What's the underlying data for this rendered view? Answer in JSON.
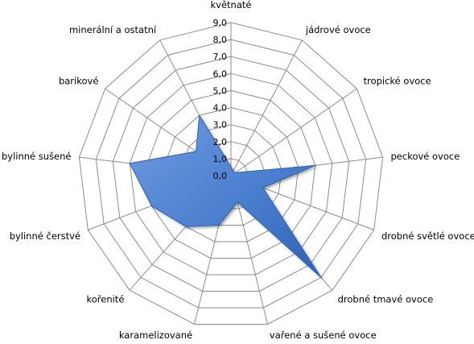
{
  "chart_data": {
    "type": "radar",
    "categories": [
      "květnaté",
      "jádrové ovoce",
      "tropické ovoce",
      "peckové ovoce",
      "drobné světlé ovoce",
      "drobné tmavé ovoce",
      "vařené a sušené ovoce",
      "karamelizované",
      "kořenité",
      "bylinné čerstvé",
      "bylinné sušené",
      "barikové",
      "minerální a ostatní"
    ],
    "series": [
      {
        "values": [
          0.5,
          0.3,
          0.3,
          5.0,
          2.0,
          8.0,
          1.6,
          3.0,
          4.0,
          5.0,
          6.0,
          2.5,
          4.0
        ]
      }
    ],
    "rlim": [
      0,
      9
    ],
    "ticks": [
      "0,0",
      "1,0",
      "2,0",
      "3,0",
      "4,0",
      "5,0",
      "6,0",
      "7,0",
      "8,0",
      "9,0"
    ],
    "grid": true,
    "fill_color": "#4a7fcf",
    "fill_edge_color": "#2e5fae",
    "grid_color": "#8c8c8c"
  }
}
